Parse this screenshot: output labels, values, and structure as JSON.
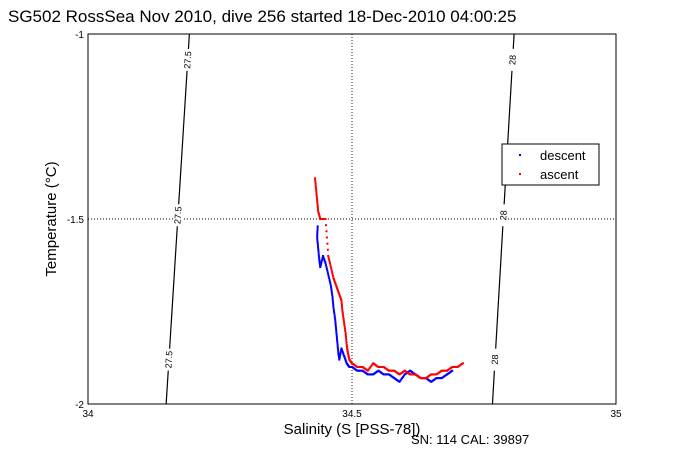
{
  "chart_data": {
    "type": "scatter",
    "title": "SG502 RossSea Nov 2010, dive 256 started 18-Dec-2010 04:00:25",
    "xlabel": "Salinity (S [PSS-78])",
    "ylabel": "Temperature (°C)",
    "xlim": [
      34,
      35
    ],
    "ylim": [
      -2,
      -1
    ],
    "x_ticks": [
      "34",
      "34.5",
      "35"
    ],
    "y_ticks": [
      "-1",
      "-1.5",
      "-2"
    ],
    "grid": "dotted at 34.5 and -1.5",
    "legend_position": "right",
    "footer": "SN: 114  CAL: 39897",
    "contours": [
      {
        "label": "27.5",
        "points": [
          [
            34.192,
            -1.0
          ],
          [
            34.148,
            -2.0
          ]
        ]
      },
      {
        "label": "28",
        "points": [
          [
            34.807,
            -1.0
          ],
          [
            34.766,
            -2.0
          ]
        ]
      }
    ],
    "series": [
      {
        "name": "descent",
        "color": "#0000ff",
        "points": [
          [
            34.435,
            -1.52
          ],
          [
            34.434,
            -1.55
          ],
          [
            34.436,
            -1.58
          ],
          [
            34.438,
            -1.61
          ],
          [
            34.44,
            -1.63
          ],
          [
            34.445,
            -1.6
          ],
          [
            34.45,
            -1.62
          ],
          [
            34.455,
            -1.65
          ],
          [
            34.46,
            -1.68
          ],
          [
            34.463,
            -1.71
          ],
          [
            34.465,
            -1.74
          ],
          [
            34.468,
            -1.77
          ],
          [
            34.47,
            -1.8
          ],
          [
            34.472,
            -1.83
          ],
          [
            34.474,
            -1.86
          ],
          [
            34.476,
            -1.88
          ],
          [
            34.48,
            -1.85
          ],
          [
            34.485,
            -1.87
          ],
          [
            34.49,
            -1.89
          ],
          [
            34.495,
            -1.9
          ],
          [
            34.5,
            -1.9
          ],
          [
            34.51,
            -1.91
          ],
          [
            34.52,
            -1.91
          ],
          [
            34.53,
            -1.92
          ],
          [
            34.54,
            -1.92
          ],
          [
            34.55,
            -1.91
          ],
          [
            34.56,
            -1.92
          ],
          [
            34.57,
            -1.92
          ],
          [
            34.58,
            -1.93
          ],
          [
            34.59,
            -1.94
          ],
          [
            34.6,
            -1.92
          ],
          [
            34.61,
            -1.91
          ],
          [
            34.62,
            -1.92
          ],
          [
            34.63,
            -1.93
          ],
          [
            34.64,
            -1.93
          ],
          [
            34.65,
            -1.94
          ],
          [
            34.66,
            -1.93
          ],
          [
            34.67,
            -1.93
          ],
          [
            34.68,
            -1.92
          ],
          [
            34.69,
            -1.91
          ]
        ]
      },
      {
        "name": "ascent",
        "color": "#ff0000",
        "points": [
          [
            34.43,
            -1.39
          ],
          [
            34.432,
            -1.42
          ],
          [
            34.434,
            -1.45
          ],
          [
            34.436,
            -1.48
          ],
          [
            34.44,
            -1.5
          ],
          [
            34.45,
            -1.5
          ],
          [
            34.455,
            -1.6
          ],
          [
            34.46,
            -1.63
          ],
          [
            34.465,
            -1.66
          ],
          [
            34.47,
            -1.68
          ],
          [
            34.475,
            -1.7
          ],
          [
            34.48,
            -1.72
          ],
          [
            34.482,
            -1.75
          ],
          [
            34.485,
            -1.78
          ],
          [
            34.488,
            -1.81
          ],
          [
            34.49,
            -1.84
          ],
          [
            34.492,
            -1.86
          ],
          [
            34.495,
            -1.88
          ],
          [
            34.5,
            -1.89
          ],
          [
            34.51,
            -1.9
          ],
          [
            34.52,
            -1.9
          ],
          [
            34.53,
            -1.91
          ],
          [
            34.54,
            -1.89
          ],
          [
            34.55,
            -1.9
          ],
          [
            34.56,
            -1.9
          ],
          [
            34.57,
            -1.91
          ],
          [
            34.58,
            -1.91
          ],
          [
            34.59,
            -1.92
          ],
          [
            34.6,
            -1.91
          ],
          [
            34.61,
            -1.92
          ],
          [
            34.62,
            -1.92
          ],
          [
            34.63,
            -1.93
          ],
          [
            34.64,
            -1.93
          ],
          [
            34.65,
            -1.92
          ],
          [
            34.66,
            -1.92
          ],
          [
            34.67,
            -1.91
          ],
          [
            34.68,
            -1.91
          ],
          [
            34.69,
            -1.9
          ],
          [
            34.7,
            -1.9
          ],
          [
            34.71,
            -1.89
          ]
        ]
      }
    ]
  }
}
